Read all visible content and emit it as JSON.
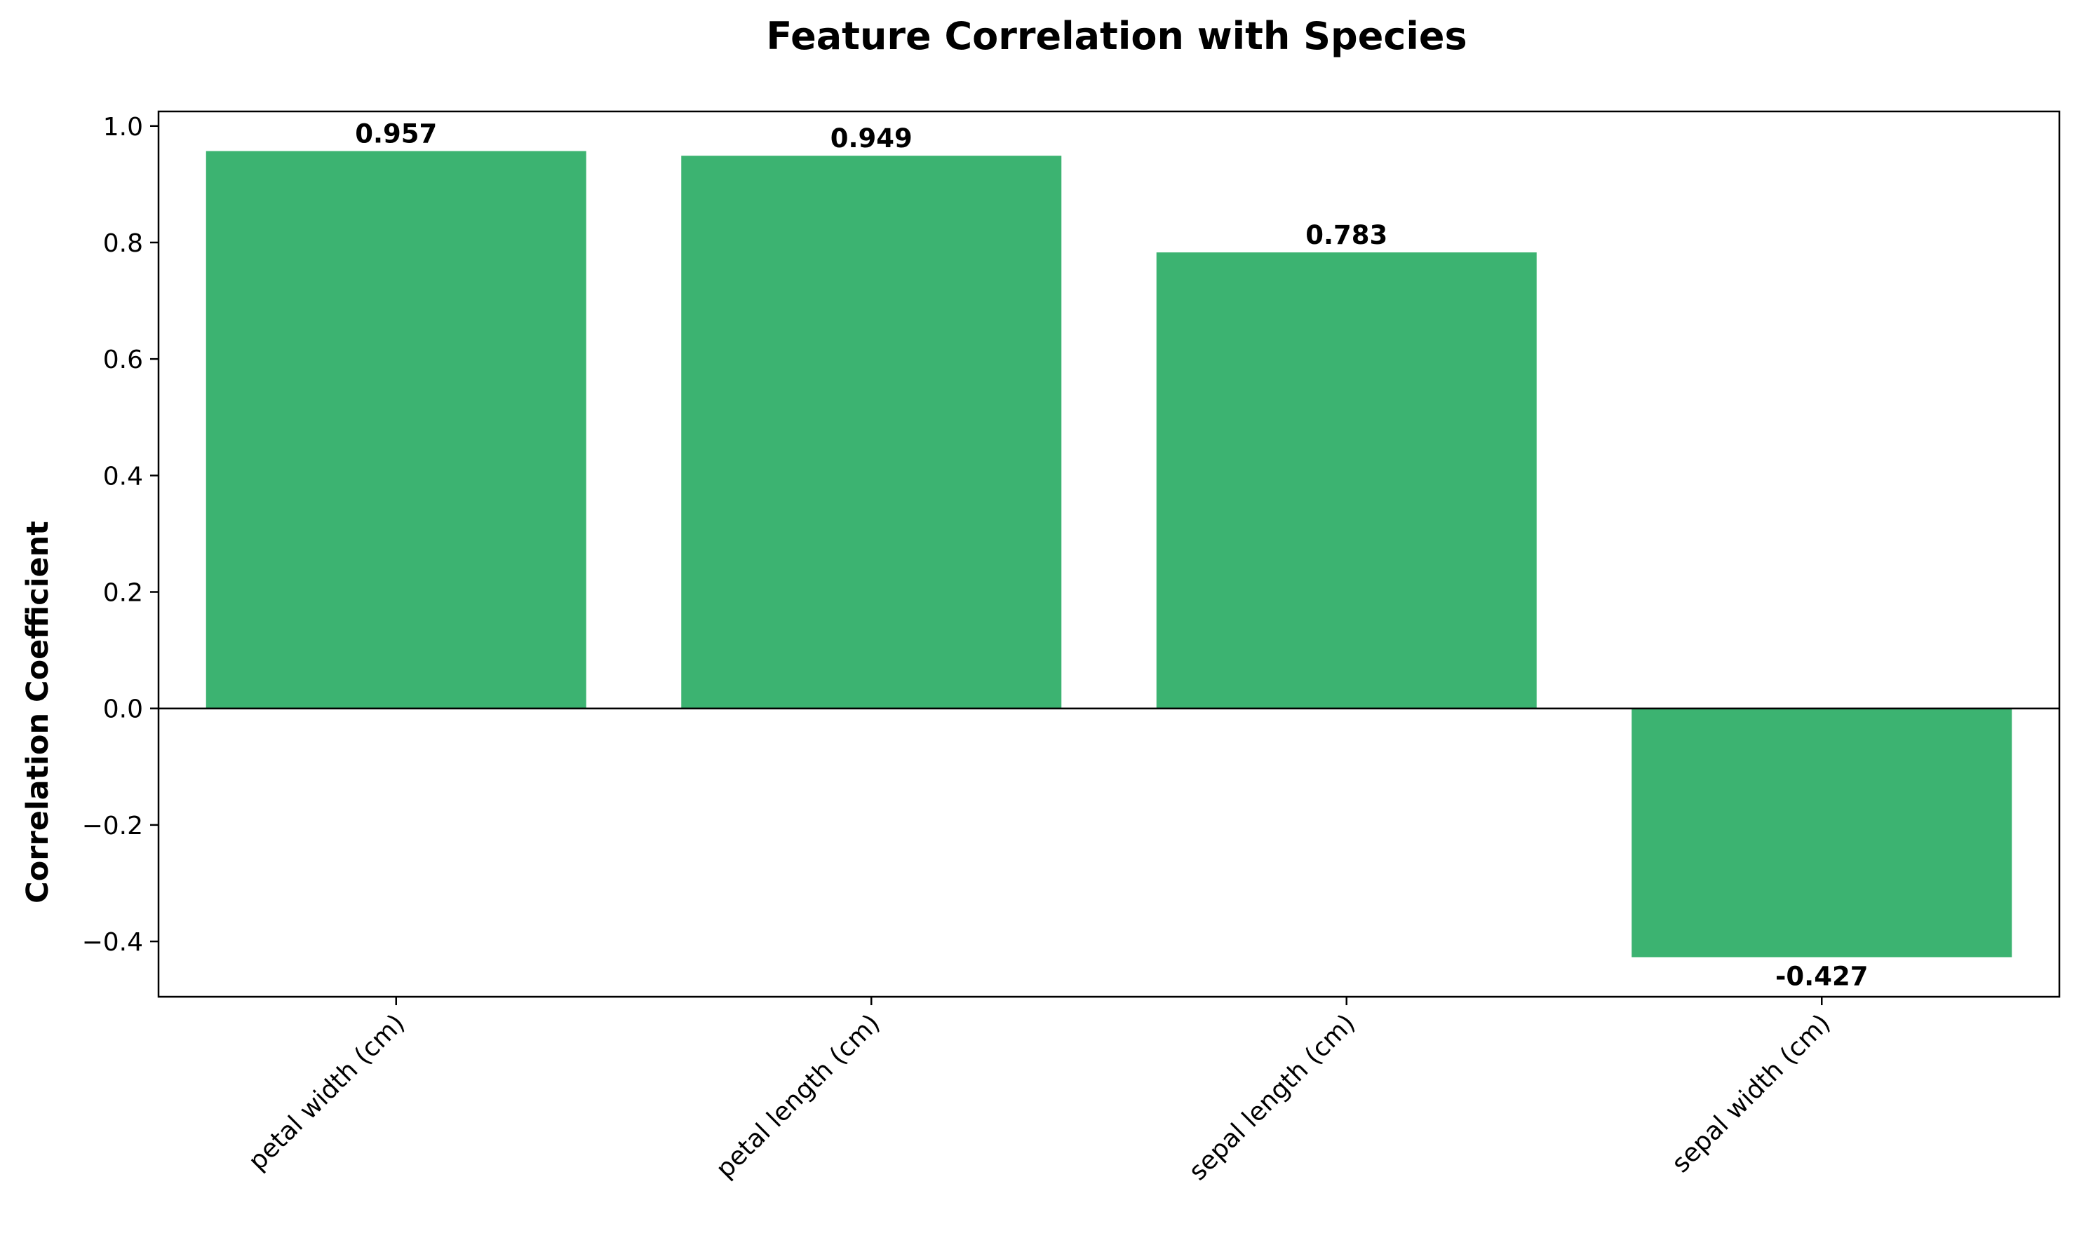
{
  "chart_data": {
    "type": "bar",
    "title": "Feature Correlation with Species",
    "xlabel": "",
    "ylabel": "Correlation Coefficient",
    "categories": [
      "petal width (cm)",
      "petal length (cm)",
      "sepal length (cm)",
      "sepal width (cm)"
    ],
    "values": [
      0.957,
      0.949,
      0.783,
      -0.427
    ],
    "data_labels": [
      "0.957",
      "0.949",
      "0.783",
      "-0.427"
    ],
    "ylim": [
      -0.495,
      1.025
    ],
    "yticks": [
      -0.4,
      -0.2,
      0.0,
      0.2,
      0.4,
      0.6,
      0.8,
      1.0
    ],
    "ytick_labels": [
      "−0.4",
      "−0.2",
      "0.0",
      "0.2",
      "0.4",
      "0.6",
      "0.8",
      "1.0"
    ],
    "bar_color": "#3cb371",
    "grid": false,
    "legend": false,
    "zero_line": true
  }
}
